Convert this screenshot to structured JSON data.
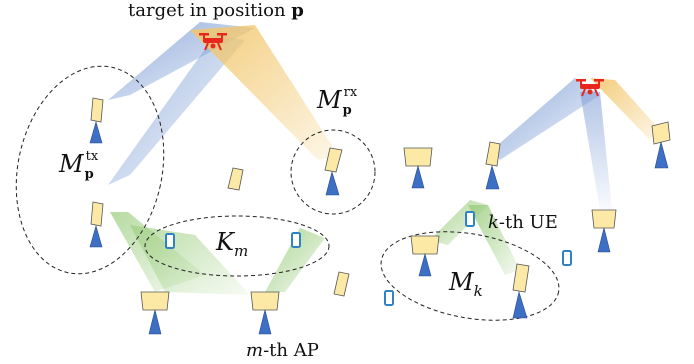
{
  "labels": {
    "target_prefix": "target in position ",
    "target_var": "p",
    "ue_k": "k",
    "ue_suffix": "-th UE",
    "ap_m": "m",
    "ap_suffix": "-th AP",
    "set_tx_base": "M",
    "set_tx_sub": "p",
    "set_tx_sup": "tx",
    "set_rx_base": "M",
    "set_rx_sub": "p",
    "set_rx_sup": "rx",
    "set_km_base": "K",
    "set_km_sub": "m",
    "set_mk_base": "M",
    "set_mk_sub": "k"
  },
  "colors": {
    "ap_panel_fill": "#fde9a6",
    "ap_panel_stroke": "#555555",
    "ap_mast": "#3d6fc4",
    "ap_mast_stroke": "#2a4d8f",
    "beam_blue": "#7f9fd6",
    "beam_yellow": "#f2c66b",
    "beam_green": "#9fcf83",
    "drone": "#e8261b",
    "ue": "#2f83c4",
    "dashed_line": "#222222"
  }
}
